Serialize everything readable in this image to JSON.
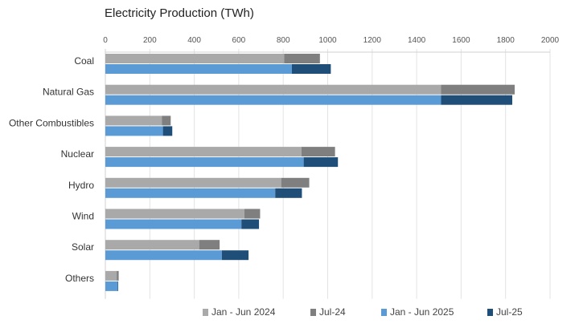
{
  "chart_data": {
    "type": "bar",
    "orientation": "horizontal",
    "stacked": true,
    "title": "Electricity Production (TWh)",
    "xlabel": "",
    "ylabel": "",
    "xlim": [
      0,
      2000
    ],
    "xticks": [
      0,
      200,
      400,
      600,
      800,
      1000,
      1200,
      1400,
      1600,
      1800,
      2000
    ],
    "grid": true,
    "legend_position": "bottom",
    "categories": [
      "Coal",
      "Natural Gas",
      "Other Combustibles",
      "Nuclear",
      "Hydro",
      "Wind",
      "Solar",
      "Others"
    ],
    "series": [
      {
        "name": "Jan - Jun 2024",
        "group": "2024",
        "color": "#a9a9a9",
        "values": [
          804,
          1510,
          254,
          882,
          791,
          625,
          422,
          51
        ]
      },
      {
        "name": "Jul-24",
        "group": "2024",
        "color": "#7f7f7f",
        "values": [
          161,
          331,
          40,
          151,
          126,
          71,
          92,
          9
        ]
      },
      {
        "name": "Jan - Jun 2025",
        "group": "2025",
        "color": "#5b9bd5",
        "values": [
          839,
          1510,
          259,
          892,
          764,
          612,
          524,
          56
        ]
      },
      {
        "name": "Jul-25",
        "group": "2025",
        "color": "#1f4e79",
        "values": [
          175,
          320,
          42,
          154,
          120,
          79,
          120,
          2
        ]
      }
    ]
  }
}
